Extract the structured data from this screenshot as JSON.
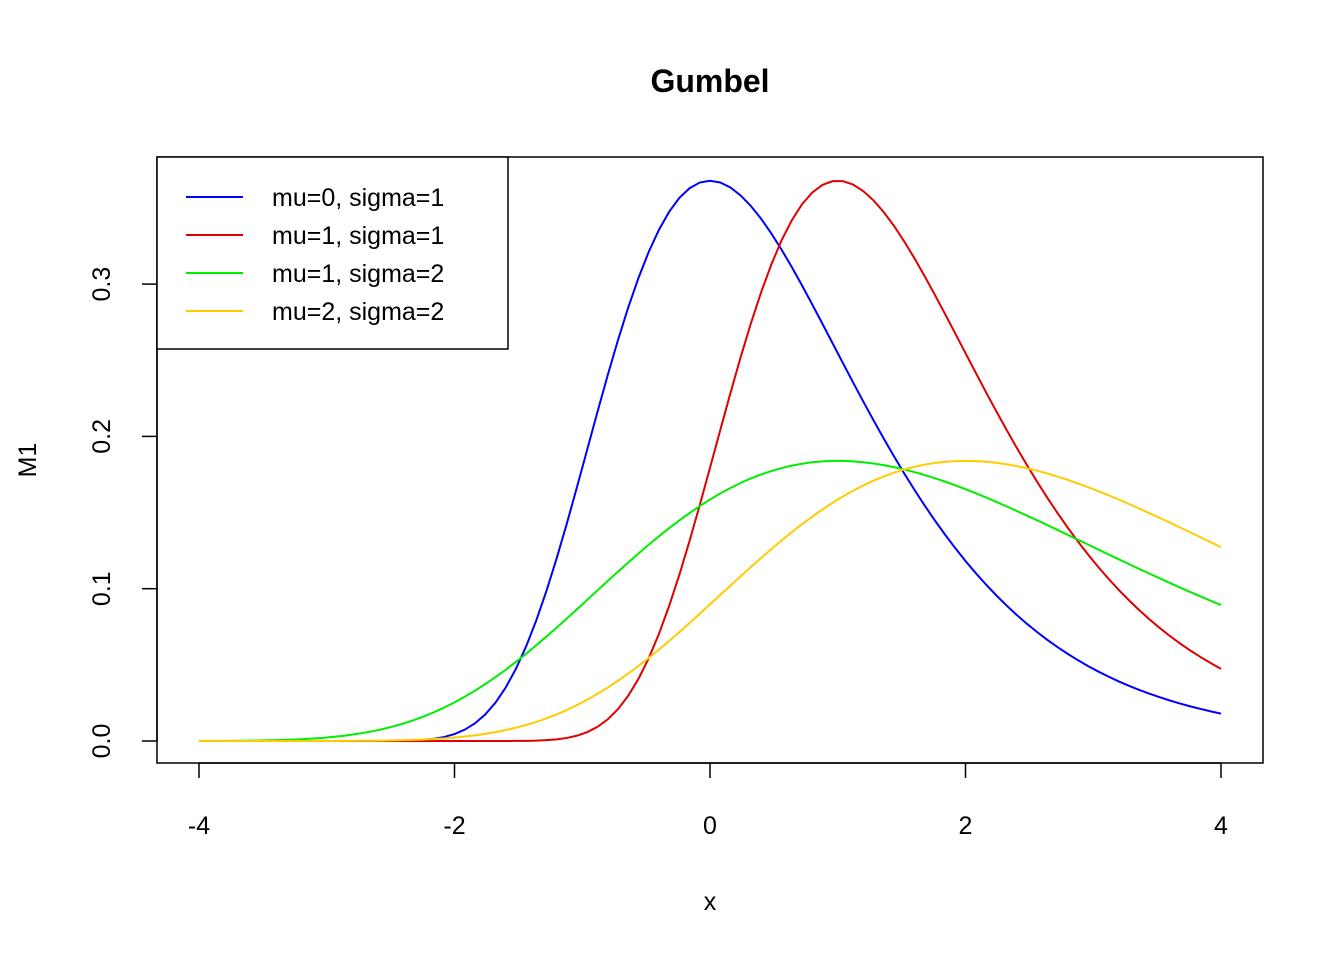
{
  "chart_data": {
    "type": "line",
    "title": "Gumbel",
    "xlabel": "x",
    "ylabel": "M1",
    "xlim": [
      -4,
      4
    ],
    "ylim": [
      0,
      0.37
    ],
    "x_ticks": [
      -4,
      -2,
      0,
      2,
      4
    ],
    "x_tick_labels": [
      "-4",
      "-2",
      "0",
      "2",
      "4"
    ],
    "y_ticks": [
      0,
      0.1,
      0.2,
      0.3
    ],
    "y_tick_labels": [
      "0.0",
      "0.1",
      "0.2",
      "0.3"
    ],
    "grid": false,
    "legend_position": "top-left",
    "x_samples": {
      "start": -4,
      "end": 4,
      "count": 101
    },
    "series": [
      {
        "name": "mu=0, sigma=1",
        "mu": 0,
        "sigma": 1,
        "color": "#0000FF"
      },
      {
        "name": "mu=1, sigma=1",
        "mu": 1,
        "sigma": 1,
        "color": "#DF0000"
      },
      {
        "name": "mu=1, sigma=2",
        "mu": 1,
        "sigma": 2,
        "color": "#00EE00"
      },
      {
        "name": "mu=2, sigma=2",
        "mu": 2,
        "sigma": 2,
        "color": "#FFCC00"
      }
    ]
  }
}
